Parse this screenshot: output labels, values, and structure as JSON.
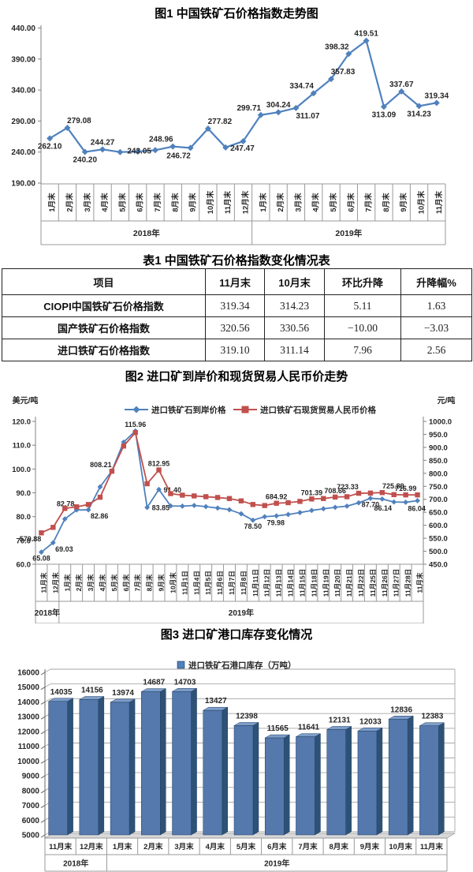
{
  "chart_data": [
    {
      "id": "fig1",
      "type": "line",
      "title": "图1 中国铁矿石价格指数走势图",
      "ylim": [
        190,
        440
      ],
      "y_ticks": [
        "440.00",
        "390.00",
        "340.00",
        "290.00",
        "240.00",
        "190.00"
      ],
      "grid": false,
      "legend_position": "none",
      "line_color": "#4f81bd",
      "categories": [
        "1月末",
        "2月末",
        "3月末",
        "4月末",
        "5月末",
        "6月末",
        "7月末",
        "8月末",
        "9月末",
        "10月末",
        "11月末",
        "12月末",
        "1月末",
        "2月末",
        "3月末",
        "4月末",
        "5月末",
        "6月末",
        "7月末",
        "8月末",
        "9月末",
        "10月末",
        "11月末"
      ],
      "groups": [
        {
          "label": "2018年",
          "count": 12
        },
        {
          "label": "2019年",
          "count": 11
        }
      ],
      "values": [
        262.1,
        279.08,
        240.2,
        244.27,
        240.0,
        240.8,
        243.05,
        248.96,
        246.72,
        277.82,
        247.47,
        257.5,
        299.71,
        304.24,
        311.07,
        334.74,
        357.83,
        398.32,
        419.51,
        313.09,
        337.67,
        314.23,
        319.34
      ],
      "labels": {
        "0": "262.10",
        "1": "279.08",
        "2": "240.20",
        "3": "244.27",
        "6": "243.05",
        "7": "248.96",
        "8": "246.72",
        "9": "277.82",
        "10": "247.47",
        "12": "299.71",
        "13": "304.24",
        "14": "311.07",
        "15": "334.74",
        "16": "357.83",
        "17": "398.32",
        "18": "419.51",
        "19": "313.09",
        "20": "337.67",
        "21": "314.23",
        "22": "319.34"
      },
      "label_pos": {
        "0": "b",
        "1": "ar",
        "2": "b",
        "3": "a",
        "6": "l",
        "7": "al",
        "8": "bl",
        "9": "ar",
        "10": "r",
        "12": "al",
        "13": "a",
        "14": "br",
        "15": "al",
        "16": "ar",
        "17": "al",
        "18": "a",
        "19": "b",
        "20": "a",
        "21": "b",
        "22": "a"
      }
    },
    {
      "id": "fig2",
      "type": "line",
      "title": "图2 进口矿到岸价和现货贸易人民币价走势",
      "left_unit": "美元/吨",
      "right_unit": "元/吨",
      "left_ylim": [
        60,
        120
      ],
      "right_ylim": [
        450,
        1000
      ],
      "left_ticks": [
        "120.0",
        "110.0",
        "100.0",
        "90.0",
        "80.0",
        "70.0",
        "60.0"
      ],
      "right_ticks": [
        "1000.0",
        "950.0",
        "900.0",
        "850.0",
        "800.0",
        "750.0",
        "700.0",
        "650.0",
        "600.0",
        "550.0",
        "500.0",
        "450.0"
      ],
      "grid": false,
      "legend_position": "top",
      "categories": [
        "11月末",
        "12月末",
        "1月末",
        "2月末",
        "3月末",
        "4月末",
        "5月末",
        "6月末",
        "7月末",
        "8月末",
        "9月末",
        "10月末",
        "11月1日",
        "11月4日",
        "11月5日",
        "11月6日",
        "11月7日",
        "11月8日",
        "11月11日",
        "11月12日",
        "11月13日",
        "11月14日",
        "11月15日",
        "11月18日",
        "11月19日",
        "11月20日",
        "11月21日",
        "11月22日",
        "11月25日",
        "11月26日",
        "11月27日",
        "11月28日",
        "11月末"
      ],
      "groups": [
        {
          "label": "2018年",
          "count": 2
        },
        {
          "label": "2019年",
          "count": 31
        }
      ],
      "series": [
        {
          "name": "进口铁矿石到岸价格",
          "axis": "left",
          "color": "#4f81bd",
          "marker": "diamond",
          "values": [
            65.08,
            69.03,
            79.0,
            82.78,
            82.86,
            92.5,
            99.2,
            111.3,
            115.96,
            83.85,
            91.4,
            84.5,
            84.4,
            84.7,
            84.2,
            83.6,
            82.9,
            81.2,
            78.5,
            79.98,
            80.3,
            80.9,
            81.7,
            82.6,
            83.3,
            83.9,
            84.4,
            85.8,
            87.7,
            87.4,
            86.14,
            86.04,
            86.7
          ],
          "labels": {
            "0": "65.08",
            "1": "69.03",
            "3": "82.78",
            "4": "82.86",
            "8": "115.96",
            "9": "83.85",
            "10": "91.40",
            "18": "78.50",
            "19": "79.98",
            "28": "87.70",
            "30": "86.14",
            "31": "86.04"
          },
          "label_pos": {
            "0": "b",
            "1": "br",
            "3": "al",
            "4": "br",
            "8": "a",
            "9": "r",
            "10": "r",
            "18": "b",
            "19": "br",
            "28": "b",
            "30": "bl",
            "31": "br"
          }
        },
        {
          "name": "进口铁矿石现货贸易人民币价格",
          "axis": "right",
          "color": "#c0504d",
          "marker": "square",
          "values": [
            570.88,
            592,
            665,
            671,
            680,
            708,
            808.21,
            905,
            957,
            760,
            812.95,
            722,
            716,
            713,
            710,
            707,
            703,
            694,
            680,
            676,
            684.92,
            687,
            692,
            701.39,
            703,
            708.66,
            710,
            723.33,
            724,
            725.89,
            718,
            716.99,
            717
          ],
          "labels": {
            "0": "570.88",
            "6": "808.21",
            "10": "812.95",
            "20": "684.92",
            "23": "701.39",
            "25": "708.66",
            "27": "723.33",
            "29": "725.89",
            "31": "716.99"
          },
          "label_pos": {
            "0": "bl",
            "6": "al",
            "10": "a",
            "20": "a",
            "23": "a",
            "25": "a",
            "27": "al",
            "29": "ar",
            "31": "a"
          }
        }
      ]
    },
    {
      "id": "fig3",
      "type": "bar",
      "title": "图3 进口矿港口库存变化情况",
      "legend": "进口铁矿石港口库存（万吨）",
      "ylim": [
        5000,
        16000
      ],
      "y_ticks": [
        "16000",
        "15000",
        "14000",
        "13000",
        "12000",
        "11000",
        "10000",
        "9000",
        "8000",
        "7000",
        "6000",
        "5000"
      ],
      "grid": true,
      "legend_position": "top-center",
      "bar_colors": {
        "front": "#5578ad",
        "side": "#2e5277",
        "top": "#7d9dc9",
        "edge": "#23405f"
      },
      "categories": [
        "11月末",
        "12月末",
        "1月末",
        "2月末",
        "3月末",
        "4月末",
        "5月末",
        "6月末",
        "7月末",
        "8月末",
        "9月末",
        "10月末",
        "11月末"
      ],
      "groups": [
        {
          "label": "2018年",
          "count": 2
        },
        {
          "label": "2019年",
          "count": 11
        }
      ],
      "values": [
        14035,
        14156,
        13974,
        14687,
        14703,
        13427,
        12398,
        11565,
        11641,
        12131,
        12033,
        12836,
        12383
      ]
    }
  ],
  "table1": {
    "title": "表1 中国铁矿石价格指数变化情况表",
    "headers": [
      "项目",
      "11月末",
      "10月末",
      "环比升降",
      "升降幅%"
    ],
    "rows": [
      [
        "CIOPI中国铁矿石价格指数",
        "319.34",
        "314.23",
        "5.11",
        "1.63"
      ],
      [
        "国产铁矿石价格指数",
        "320.56",
        "330.56",
        "−10.00",
        "−3.03"
      ],
      [
        "进口铁矿石价格指数",
        "319.10",
        "311.14",
        "7.96",
        "2.56"
      ]
    ]
  }
}
